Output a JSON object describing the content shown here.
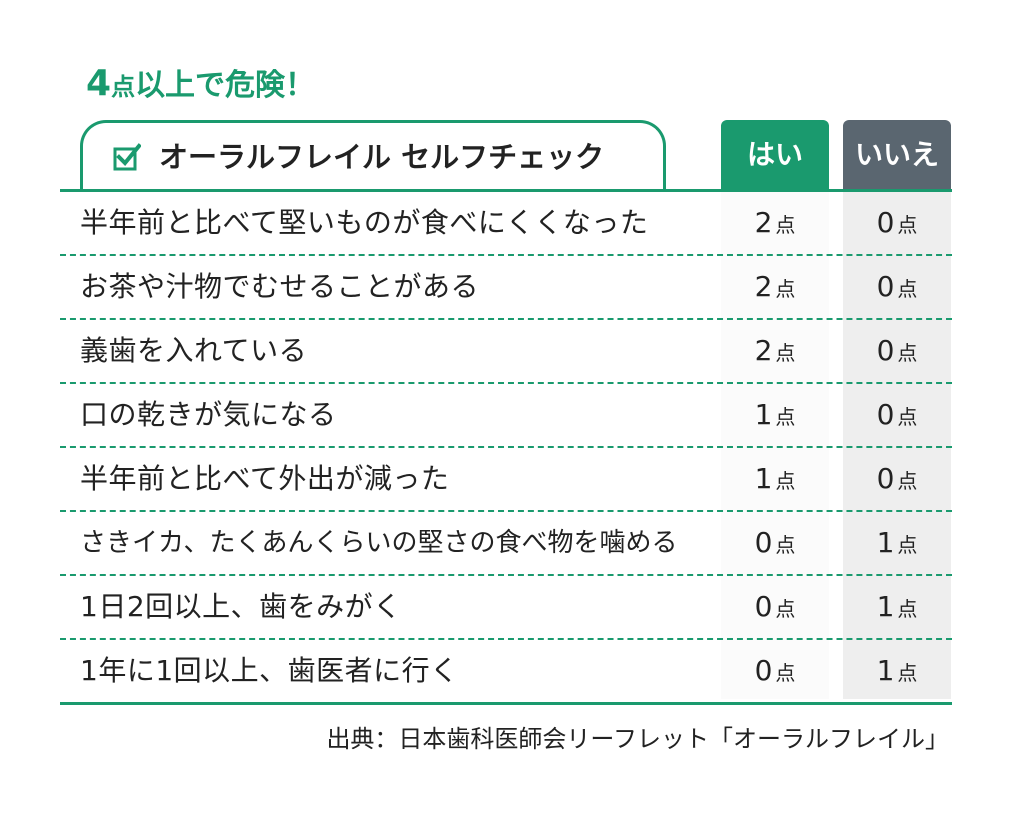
{
  "alert": {
    "num": "4",
    "unit": "点",
    "rest": "以上で危険！"
  },
  "table": {
    "title": "オーラルフレイル セルフチェック",
    "col_yes": "はい",
    "col_no": "いいえ",
    "point_unit": "点",
    "rows": [
      {
        "q": "半年前と比べて堅いものが食べにくくなった",
        "yes": "2",
        "no": "0"
      },
      {
        "q": "お茶や汁物でむせることがある",
        "yes": "2",
        "no": "0"
      },
      {
        "q": "義歯を入れている",
        "yes": "2",
        "no": "0"
      },
      {
        "q": "口の乾きが気になる",
        "yes": "1",
        "no": "0"
      },
      {
        "q": "半年前と比べて外出が減った",
        "yes": "1",
        "no": "0"
      },
      {
        "q": "さきイカ、たくあんくらいの堅さの食べ物を噛める",
        "yes": "0",
        "no": "1"
      },
      {
        "q": "1日2回以上、歯をみがく",
        "yes": "0",
        "no": "1"
      },
      {
        "q": "1年に1回以上、歯医者に行く",
        "yes": "0",
        "no": "1"
      }
    ]
  },
  "source": "出典：日本歯科医師会リーフレット「オーラルフレイル」",
  "colors": {
    "green": "#1a9a6e",
    "gray": "#5a6670"
  },
  "icons": {
    "check": "checkbox-check-icon"
  }
}
